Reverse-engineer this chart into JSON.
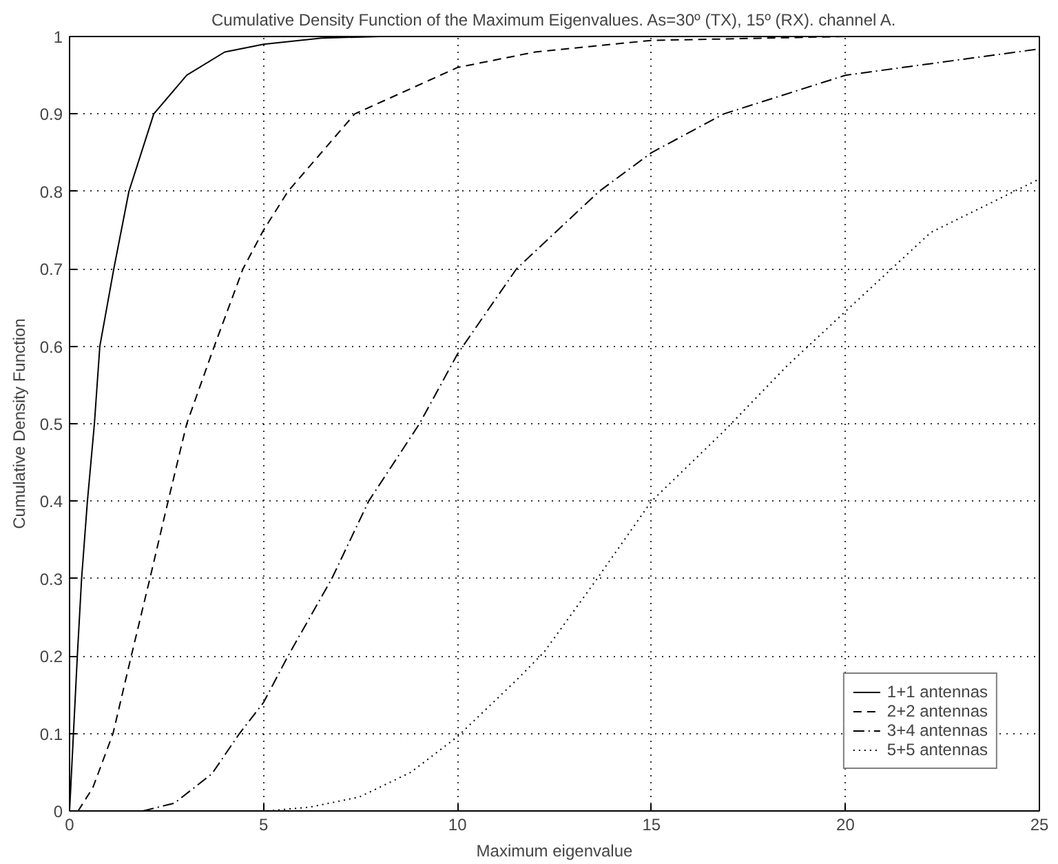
{
  "chart_data": {
    "type": "line",
    "title": "Cumulative Density Function of the Maximum Eigenvalues. As=30º (TX), 15º (RX). channel A.",
    "xlabel": "Maximum eigenvalue",
    "ylabel": "Cumulative Density Function",
    "xlim": [
      0,
      25
    ],
    "ylim": [
      0,
      1
    ],
    "xticks": [
      0,
      5,
      10,
      15,
      20,
      25
    ],
    "yticks": [
      0,
      0.1,
      0.2,
      0.3,
      0.4,
      0.5,
      0.6,
      0.7,
      0.8,
      0.9,
      1
    ],
    "grid": true,
    "legend": "bottom right",
    "marker": "none",
    "series": [
      {
        "name": "1+1 antennas",
        "color": "#000000",
        "line_style": "solid",
        "x": [
          0,
          0.1,
          0.2,
          0.31,
          0.46,
          0.64,
          0.78,
          1.14,
          1.53,
          2.17,
          3.02,
          4.0,
          5.0,
          6.5,
          8,
          25
        ],
        "values": [
          0,
          0.1,
          0.2,
          0.3,
          0.4,
          0.5,
          0.6,
          0.7,
          0.8,
          0.9,
          0.95,
          0.98,
          0.99,
          0.998,
          1,
          1
        ]
      },
      {
        "name": "2+2 antennas",
        "color": "#000000",
        "line_style": "dashed",
        "x": [
          0.22,
          0.6,
          1.12,
          1.59,
          2.07,
          2.54,
          3.02,
          3.73,
          4.47,
          5.0,
          5.63,
          7.35,
          10.0,
          12.0,
          15.0,
          20.0,
          25.0
        ],
        "values": [
          0,
          0.03,
          0.1,
          0.2,
          0.3,
          0.4,
          0.5,
          0.6,
          0.7,
          0.75,
          0.8,
          0.9,
          0.96,
          0.98,
          0.995,
          1,
          1
        ]
      },
      {
        "name": "3+4 antennas",
        "color": "#000000",
        "line_style": "dashdot",
        "x": [
          1.89,
          2.7,
          3.67,
          4.38,
          5.0,
          5.63,
          6.76,
          7.71,
          9.02,
          10.0,
          11.52,
          13.65,
          15.0,
          16.86,
          20.0,
          25.0
        ],
        "values": [
          0,
          0.01,
          0.048,
          0.1,
          0.14,
          0.2,
          0.3,
          0.4,
          0.5,
          0.59,
          0.7,
          0.8,
          0.85,
          0.9,
          0.95,
          0.984
        ]
      },
      {
        "name": "5+5 antennas",
        "color": "#000000",
        "line_style": "dotted",
        "x": [
          5.1,
          6.2,
          7.47,
          8.8,
          10.0,
          11.52,
          12.23,
          13.6,
          15.0,
          16.86,
          18.5,
          20.0,
          22.2,
          25.0
        ],
        "values": [
          0,
          0.005,
          0.018,
          0.05,
          0.096,
          0.169,
          0.205,
          0.3,
          0.4,
          0.49,
          0.575,
          0.645,
          0.747,
          0.816
        ]
      }
    ]
  }
}
